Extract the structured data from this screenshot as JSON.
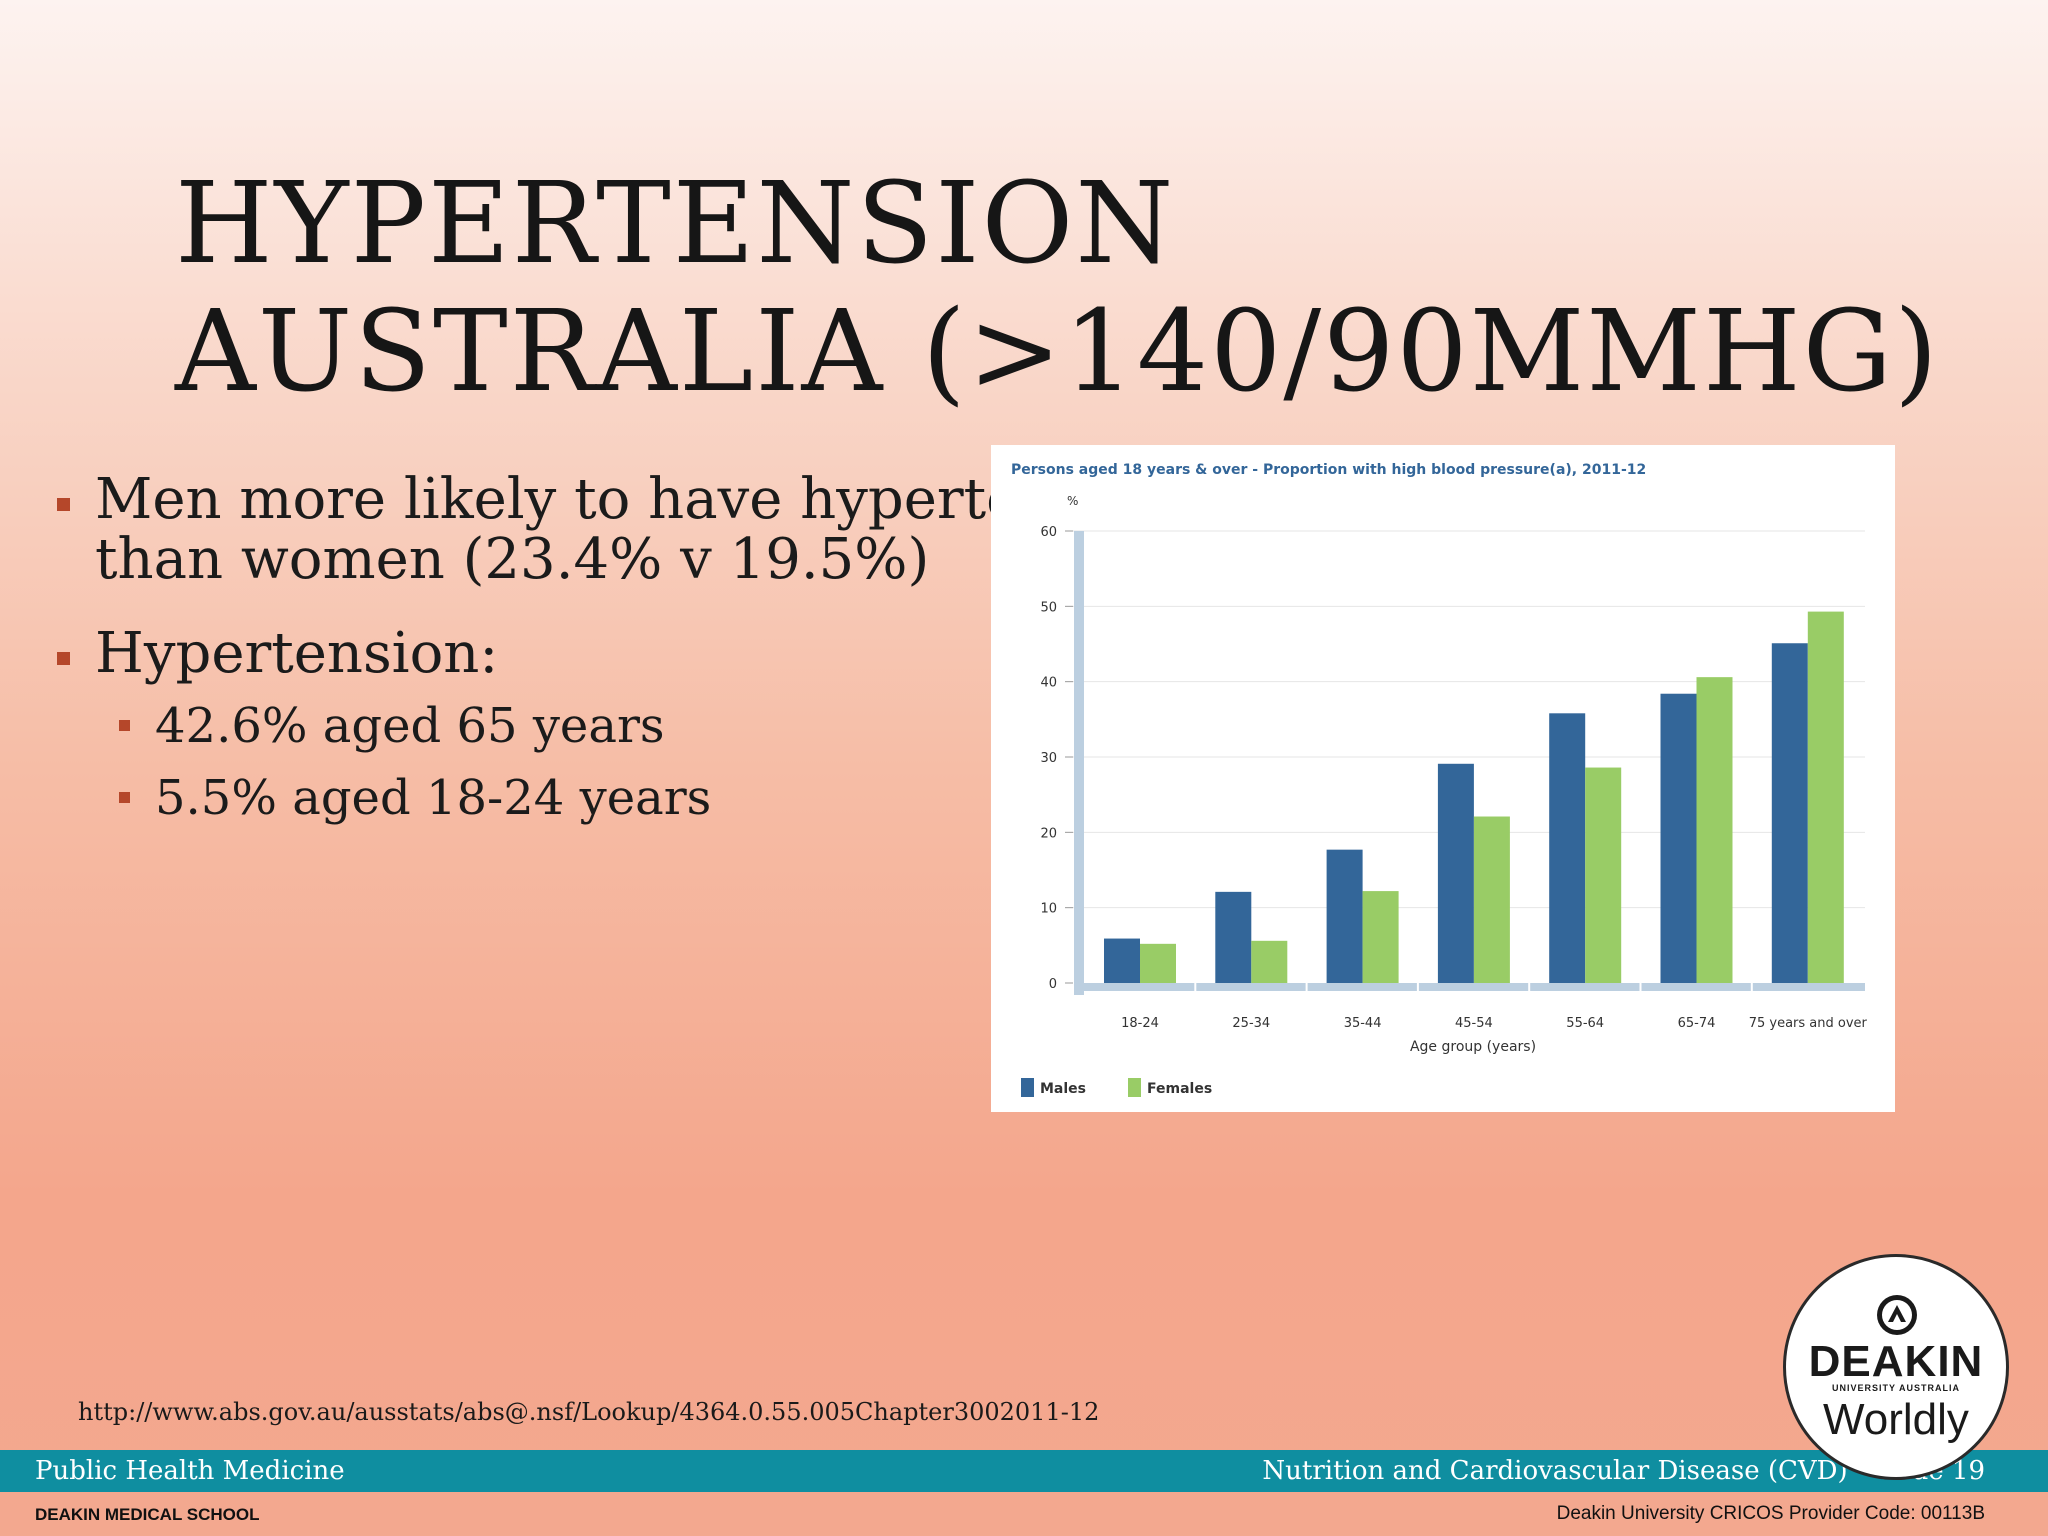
{
  "slide": {
    "title_lines": [
      "HYPERTENSION",
      "AUSTRALIA (>140/90MMHG)"
    ],
    "bullets": [
      {
        "lines": [
          "Men more likely to have hypertension",
          "than women (23.4% v 19.5%)"
        ]
      },
      {
        "lines": [
          "Hypertension:"
        ],
        "sub": [
          "42.6% aged 65 years",
          "5.5% aged 18-24 years"
        ]
      }
    ],
    "source_url": "http://www.abs.gov.au/ausstats/abs@.nsf/Lookup/4364.0.55.005Chapter3002011-12"
  },
  "footer": {
    "left": "Public Health Medicine",
    "right": "Nutrition and Cardiovascular Disease (CVD) – Slide 19",
    "school": "DEAKIN MEDICAL SCHOOL",
    "cricos": "Deakin University CRICOS Provider Code: 00113B"
  },
  "logo": {
    "name": "DEAKIN",
    "subtitle": "UNIVERSITY AUSTRALIA",
    "tagline": "Worldly"
  },
  "colors": {
    "accent": "#b5472a",
    "footer_bar": "#0f8ea0",
    "males": "#336699",
    "females": "#99cc66",
    "chart_title": "#336699"
  },
  "chart_data": {
    "type": "bar",
    "title": "Persons aged 18 years & over - Proportion with high blood pressure(a), 2011-12",
    "ylabel": "%",
    "xlabel": "Age group (years)",
    "ylim": [
      0,
      60
    ],
    "yticks": [
      0,
      10,
      20,
      30,
      40,
      50,
      60
    ],
    "grid": true,
    "legend_position": "bottom-left",
    "categories": [
      "18-24",
      "25-34",
      "35-44",
      "45-54",
      "55-64",
      "65-74",
      "75 years and over"
    ],
    "series": [
      {
        "name": "Males",
        "color": "#336699",
        "values": [
          5.9,
          12.1,
          17.7,
          29.1,
          35.8,
          38.4,
          45.1
        ]
      },
      {
        "name": "Females",
        "color": "#99cc66",
        "values": [
          5.2,
          5.6,
          12.2,
          22.1,
          28.6,
          40.6,
          49.3
        ]
      }
    ]
  }
}
